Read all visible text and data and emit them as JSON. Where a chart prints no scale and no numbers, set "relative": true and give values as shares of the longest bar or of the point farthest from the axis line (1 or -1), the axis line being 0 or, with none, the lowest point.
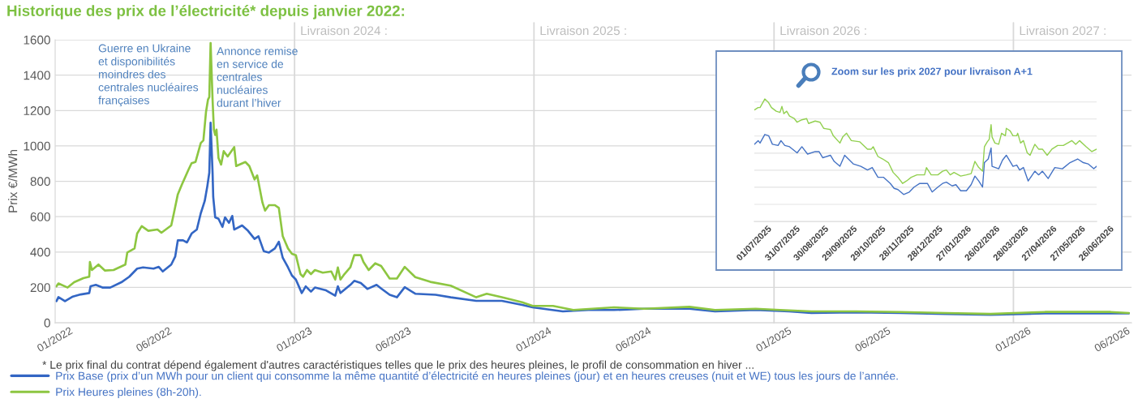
{
  "chart_data": [
    {
      "type": "line",
      "title": "Historique des prix de l’électricité* depuis janvier 2022:",
      "ylabel": "Prix €/MWh",
      "annotations": [
        "Guerre en Ukraine\net disponibilités\nmoindres des\ncentrales nucléaires\nfrançaises",
        "Annonce remise\nen service de\ncentrales\nnucléaires\ndurant l’hiver",
        "* Le prix final du contrat dépend également d'autres caractéristiques telles que le prix des heures pleines, le profil de consommation en hiver ..."
      ],
      "xlim": [
        "2022-01-01",
        "2026-06-30"
      ],
      "xticks": [
        {
          "value": "2022-01-01",
          "label": "01/2022"
        },
        {
          "value": "2022-06-01",
          "label": "06/2022"
        },
        {
          "value": "2023-01-01",
          "label": "01/2023"
        },
        {
          "value": "2023-06-01",
          "label": "06/2023"
        },
        {
          "value": "2024-01-01",
          "label": "01/2024"
        },
        {
          "value": "2024-06-01",
          "label": "06/2024"
        },
        {
          "value": "2025-01-01",
          "label": "01/2025"
        },
        {
          "value": "2025-06-01",
          "label": "06/2025"
        },
        {
          "value": "2026-01-01",
          "label": "01/2026"
        },
        {
          "value": "2026-06-01",
          "label": "06/2026"
        }
      ],
      "ylim": [
        0,
        1600
      ],
      "yticks": [
        0,
        200,
        400,
        600,
        800,
        1000,
        1200,
        1400,
        1600
      ],
      "grid": "y",
      "legend": "bottom",
      "ref_lines": [
        {
          "axis": "x",
          "value": "2023-01-01",
          "label": "Livraison 2024 :",
          "color": "#d9d9d9"
        },
        {
          "axis": "x",
          "value": "2024-01-01",
          "label": "Livraison 2025 :",
          "color": "#d9d9d9"
        },
        {
          "axis": "x",
          "value": "2025-01-01",
          "label": "Livraison 2026 :",
          "color": "#d9d9d9"
        },
        {
          "axis": "x",
          "value": "2026-01-01",
          "label": "Livraison 2027 :",
          "color": "#d9d9d9"
        }
      ],
      "series": [
        {
          "name": "Prix Base (prix d’un MWh pour un client qui consomme la même quantité d’électricité en heures pleines (jour) et en heures creuses (nuit et WE) tous les jours de l’année.",
          "color": "#3366c4",
          "x": [
            "2022-01-03",
            "2022-01-06",
            "2022-01-16",
            "2022-01-28",
            "2022-02-09",
            "2022-02-22",
            "2022-02-24",
            "2022-03-04",
            "2022-03-14",
            "2022-03-26",
            "2022-04-12",
            "2022-04-24",
            "2022-05-06",
            "2022-05-15",
            "2022-05-31",
            "2022-06-08",
            "2022-06-14",
            "2022-06-27",
            "2022-07-03",
            "2022-07-07",
            "2022-07-15",
            "2022-07-21",
            "2022-07-28",
            "2022-08-05",
            "2022-08-11",
            "2022-08-17",
            "2022-08-21",
            "2022-08-24",
            "2022-08-26",
            "2022-08-29",
            "2022-08-30",
            "2022-09-02",
            "2022-09-07",
            "2022-09-13",
            "2022-09-17",
            "2022-09-23",
            "2022-09-28",
            "2022-10-01",
            "2022-10-13",
            "2022-10-22",
            "2022-11-01",
            "2022-11-07",
            "2022-11-15",
            "2022-11-23",
            "2022-12-02",
            "2022-12-08",
            "2022-12-14",
            "2022-12-22",
            "2022-12-28",
            "2023-01-03",
            "2023-01-12",
            "2023-01-18",
            "2023-01-26",
            "2023-02-01",
            "2023-02-18",
            "2023-03-04",
            "2023-03-08",
            "2023-03-12",
            "2023-03-27",
            "2023-04-02",
            "2023-04-12",
            "2023-04-22",
            "2023-05-06",
            "2023-05-13",
            "2023-05-26",
            "2023-06-06",
            "2023-06-18",
            "2023-07-04",
            "2023-08-04",
            "2023-08-27",
            "2023-10-05",
            "2023-11-13",
            "2023-12-14",
            "2023-12-30",
            "2024-02-14",
            "2024-03-24",
            "2024-05-02",
            "2024-06-17",
            "2024-08-25",
            "2024-10-03",
            "2024-12-04",
            "2025-01-24",
            "2025-02-27",
            "2025-05-06",
            "2025-07-13",
            "2025-09-20",
            "2025-11-27",
            "2026-02-18",
            "2026-05-29",
            "2026-06-26"
          ],
          "values": [
            122,
            145,
            122,
            148,
            160,
            168,
            206,
            214,
            199,
            199,
            229,
            260,
            306,
            313,
            306,
            316,
            290,
            329,
            374,
            466,
            466,
            454,
            504,
            527,
            619,
            688,
            772,
            848,
            1131,
            848,
            711,
            596,
            588,
            542,
            596,
            565,
            604,
            527,
            550,
            520,
            474,
            489,
            405,
            397,
            420,
            458,
            367,
            313,
            267,
            244,
            168,
            206,
            176,
            199,
            183,
            153,
            206,
            168,
            214,
            237,
            225,
            191,
            214,
            194,
            158,
            144,
            201,
            164,
            158,
            144,
            124,
            124,
            101,
            87,
            64,
            72,
            72,
            79,
            79,
            64,
            72,
            64,
            55,
            59,
            55,
            50,
            45,
            53,
            53,
            53
          ]
        },
        {
          "name": "Prix Heures pleines (8h-20h).",
          "color": "#8dc641",
          "x": [
            "2022-01-03",
            "2022-01-06",
            "2022-01-20",
            "2022-01-30",
            "2022-02-13",
            "2022-02-22",
            "2022-02-23",
            "2022-02-26",
            "2022-03-08",
            "2022-03-18",
            "2022-03-31",
            "2022-04-18",
            "2022-04-21",
            "2022-05-02",
            "2022-05-06",
            "2022-05-13",
            "2022-05-23",
            "2022-06-06",
            "2022-06-12",
            "2022-06-27",
            "2022-07-01",
            "2022-07-07",
            "2022-07-13",
            "2022-07-23",
            "2022-07-28",
            "2022-08-03",
            "2022-08-11",
            "2022-08-15",
            "2022-08-19",
            "2022-08-22",
            "2022-08-24",
            "2022-08-26",
            "2022-08-29",
            "2022-08-31",
            "2022-09-02",
            "2022-09-04",
            "2022-09-07",
            "2022-09-11",
            "2022-09-15",
            "2022-09-21",
            "2022-10-01",
            "2022-10-04",
            "2022-10-18",
            "2022-10-24",
            "2022-11-01",
            "2022-11-05",
            "2022-11-13",
            "2022-11-17",
            "2022-11-23",
            "2022-12-02",
            "2022-12-08",
            "2022-12-14",
            "2022-12-22",
            "2022-12-28",
            "2023-01-03",
            "2023-01-10",
            "2023-01-14",
            "2023-01-20",
            "2023-01-26",
            "2023-02-01",
            "2023-02-13",
            "2023-02-26",
            "2023-03-04",
            "2023-03-08",
            "2023-03-12",
            "2023-03-18",
            "2023-03-27",
            "2023-04-02",
            "2023-04-12",
            "2023-04-16",
            "2023-04-24",
            "2023-05-04",
            "2023-05-13",
            "2023-05-26",
            "2023-06-06",
            "2023-06-18",
            "2023-07-04",
            "2023-07-27",
            "2023-08-27",
            "2023-10-05",
            "2023-10-21",
            "2023-11-13",
            "2023-12-14",
            "2023-12-30",
            "2024-01-30",
            "2024-03-01",
            "2024-05-02",
            "2024-06-17",
            "2024-08-25",
            "2024-10-03",
            "2024-12-04",
            "2025-01-10",
            "2025-02-27",
            "2025-05-06",
            "2025-07-13",
            "2025-09-20",
            "2025-11-27",
            "2026-02-18",
            "2026-05-29",
            "2026-06-26"
          ],
          "values": [
            206,
            222,
            199,
            229,
            252,
            260,
            344,
            298,
            329,
            295,
            298,
            329,
            397,
            420,
            504,
            546,
            520,
            527,
            509,
            550,
            619,
            726,
            779,
            863,
            902,
            909,
            1016,
            1031,
            1192,
            1261,
            1276,
            1581,
            1261,
            1092,
            1062,
            1092,
            932,
            894,
            970,
            940,
            993,
            886,
            909,
            886,
            810,
            833,
            680,
            634,
            665,
            665,
            649,
            489,
            420,
            390,
            382,
            275,
            260,
            298,
            275,
            298,
            283,
            290,
            244,
            313,
            244,
            275,
            313,
            382,
            382,
            344,
            298,
            336,
            321,
            250,
            250,
            316,
            258,
            231,
            210,
            144,
            164,
            144,
            116,
            95,
            95,
            72,
            87,
            79,
            90,
            72,
            79,
            72,
            64,
            64,
            61,
            55,
            50,
            61,
            61,
            55
          ]
        }
      ]
    },
    {
      "type": "line",
      "title": "Zoom sur les prix 2027 pour livraison A+1",
      "relative": true,
      "grid": "y",
      "tick_labels": "x",
      "xlim": [
        "2025-07-01",
        "2026-06-26"
      ],
      "xticks": [
        {
          "value": "2025-07-01",
          "label": "01/07/2025"
        },
        {
          "value": "2025-07-31",
          "label": "31/07/2025"
        },
        {
          "value": "2025-08-30",
          "label": "30/08/2025"
        },
        {
          "value": "2025-09-29",
          "label": "29/09/2025"
        },
        {
          "value": "2025-10-29",
          "label": "29/10/2025"
        },
        {
          "value": "2025-11-28",
          "label": "28/11/2025"
        },
        {
          "value": "2025-12-28",
          "label": "28/12/2025"
        },
        {
          "value": "2026-01-27",
          "label": "27/01/2026"
        },
        {
          "value": "2026-02-26",
          "label": "26/02/2026"
        },
        {
          "value": "2026-03-28",
          "label": "28/03/2026"
        },
        {
          "value": "2026-04-27",
          "label": "27/04/2026"
        },
        {
          "value": "2026-05-27",
          "label": "27/05/2026"
        },
        {
          "value": "2026-06-26",
          "label": "26/06/2026"
        }
      ],
      "series": [
        {
          "color": "#4472c4",
          "x": [
            "2025-07-01",
            "2025-07-05",
            "2025-07-07",
            "2025-07-12",
            "2025-07-16",
            "2025-07-20",
            "2025-07-26",
            "2025-07-29",
            "2025-08-02",
            "2025-08-07",
            "2025-08-15",
            "2025-08-20",
            "2025-08-26",
            "2025-09-03",
            "2025-09-07",
            "2025-09-11",
            "2025-09-19",
            "2025-09-23",
            "2025-09-29",
            "2025-10-04",
            "2025-10-13",
            "2025-10-21",
            "2025-10-28",
            "2025-11-02",
            "2025-11-08",
            "2025-11-14",
            "2025-11-21",
            "2025-11-25",
            "2025-11-29",
            "2025-12-05",
            "2025-12-11",
            "2025-12-16",
            "2025-12-22",
            "2025-12-30",
            "2026-01-04",
            "2026-01-10",
            "2026-01-15",
            "2026-01-19",
            "2026-01-25",
            "2026-01-29",
            "2026-02-03",
            "2026-02-09",
            "2026-02-14",
            "2026-02-18",
            "2026-02-22",
            "2026-02-26",
            "2026-02-28",
            "2026-03-04",
            "2026-03-07",
            "2026-03-08",
            "2026-03-15",
            "2026-03-19",
            "2026-03-23",
            "2026-03-27",
            "2026-03-30",
            "2026-04-03",
            "2026-04-06",
            "2026-04-10",
            "2026-04-15",
            "2026-04-22",
            "2026-04-26",
            "2026-04-30",
            "2026-05-06",
            "2026-05-13",
            "2026-05-21",
            "2026-05-29",
            "2026-06-06",
            "2026-06-12",
            "2026-06-17",
            "2026-06-23",
            "2026-06-26"
          ],
          "values": [
            0.63,
            0.66,
            0.64,
            0.71,
            0.7,
            0.63,
            0.62,
            0.66,
            0.62,
            0.61,
            0.56,
            0.61,
            0.55,
            0.57,
            0.57,
            0.52,
            0.54,
            0.49,
            0.45,
            0.54,
            0.47,
            0.45,
            0.42,
            0.44,
            0.36,
            0.36,
            0.31,
            0.27,
            0.26,
            0.22,
            0.24,
            0.28,
            0.31,
            0.31,
            0.24,
            0.28,
            0.31,
            0.32,
            0.29,
            0.3,
            0.25,
            0.25,
            0.3,
            0.37,
            0.33,
            0.28,
            0.48,
            0.51,
            0.6,
            0.45,
            0.43,
            0.5,
            0.54,
            0.49,
            0.45,
            0.46,
            0.42,
            0.44,
            0.33,
            0.41,
            0.38,
            0.41,
            0.35,
            0.44,
            0.43,
            0.48,
            0.51,
            0.48,
            0.47,
            0.43,
            0.45
          ]
        },
        {
          "color": "#92d050",
          "x": [
            "2025-07-01",
            "2025-07-05",
            "2025-07-07",
            "2025-07-12",
            "2025-07-16",
            "2025-07-19",
            "2025-07-24",
            "2025-07-28",
            "2025-07-30",
            "2025-08-01",
            "2025-08-04",
            "2025-08-07",
            "2025-08-12",
            "2025-08-15",
            "2025-08-20",
            "2025-08-25",
            "2025-08-27",
            "2025-09-03",
            "2025-09-08",
            "2025-09-12",
            "2025-09-19",
            "2025-09-22",
            "2025-09-29",
            "2025-10-02",
            "2025-10-06",
            "2025-10-11",
            "2025-10-20",
            "2025-10-28",
            "2025-11-01",
            "2025-11-03",
            "2025-11-08",
            "2025-11-13",
            "2025-11-19",
            "2025-11-24",
            "2025-11-29",
            "2025-12-04",
            "2025-12-08",
            "2025-12-13",
            "2025-12-19",
            "2025-12-27",
            "2025-12-29",
            "2026-01-03",
            "2026-01-10",
            "2026-01-15",
            "2026-01-19",
            "2026-01-23",
            "2026-01-27",
            "2026-02-03",
            "2026-02-09",
            "2026-02-14",
            "2026-02-18",
            "2026-02-22",
            "2026-02-26",
            "2026-02-28",
            "2026-03-03",
            "2026-03-05",
            "2026-03-07",
            "2026-03-08",
            "2026-03-11",
            "2026-03-15",
            "2026-03-18",
            "2026-03-22",
            "2026-03-23",
            "2026-03-27",
            "2026-03-30",
            "2026-04-03",
            "2026-04-04",
            "2026-04-07",
            "2026-04-10",
            "2026-04-14",
            "2026-04-17",
            "2026-04-22",
            "2026-04-26",
            "2026-04-30",
            "2026-05-05",
            "2026-05-10",
            "2026-05-16",
            "2026-05-22",
            "2026-05-31",
            "2026-06-04",
            "2026-06-08",
            "2026-06-15",
            "2026-06-21",
            "2026-06-26"
          ],
          "values": [
            0.91,
            0.93,
            0.93,
            1.0,
            0.97,
            0.93,
            0.9,
            0.89,
            0.94,
            0.88,
            0.9,
            0.86,
            0.84,
            0.81,
            0.83,
            0.84,
            0.8,
            0.82,
            0.81,
            0.76,
            0.75,
            0.7,
            0.64,
            0.69,
            0.72,
            0.66,
            0.65,
            0.59,
            0.59,
            0.61,
            0.53,
            0.51,
            0.48,
            0.4,
            0.36,
            0.31,
            0.33,
            0.36,
            0.38,
            0.38,
            0.44,
            0.38,
            0.38,
            0.41,
            0.42,
            0.38,
            0.4,
            0.37,
            0.38,
            0.39,
            0.49,
            0.44,
            0.41,
            0.61,
            0.65,
            0.67,
            0.79,
            0.69,
            0.64,
            0.63,
            0.72,
            0.7,
            0.76,
            0.74,
            0.7,
            0.7,
            0.72,
            0.64,
            0.66,
            0.56,
            0.54,
            0.63,
            0.59,
            0.59,
            0.54,
            0.59,
            0.62,
            0.62,
            0.66,
            0.63,
            0.66,
            0.61,
            0.57,
            0.59
          ]
        }
      ]
    }
  ]
}
